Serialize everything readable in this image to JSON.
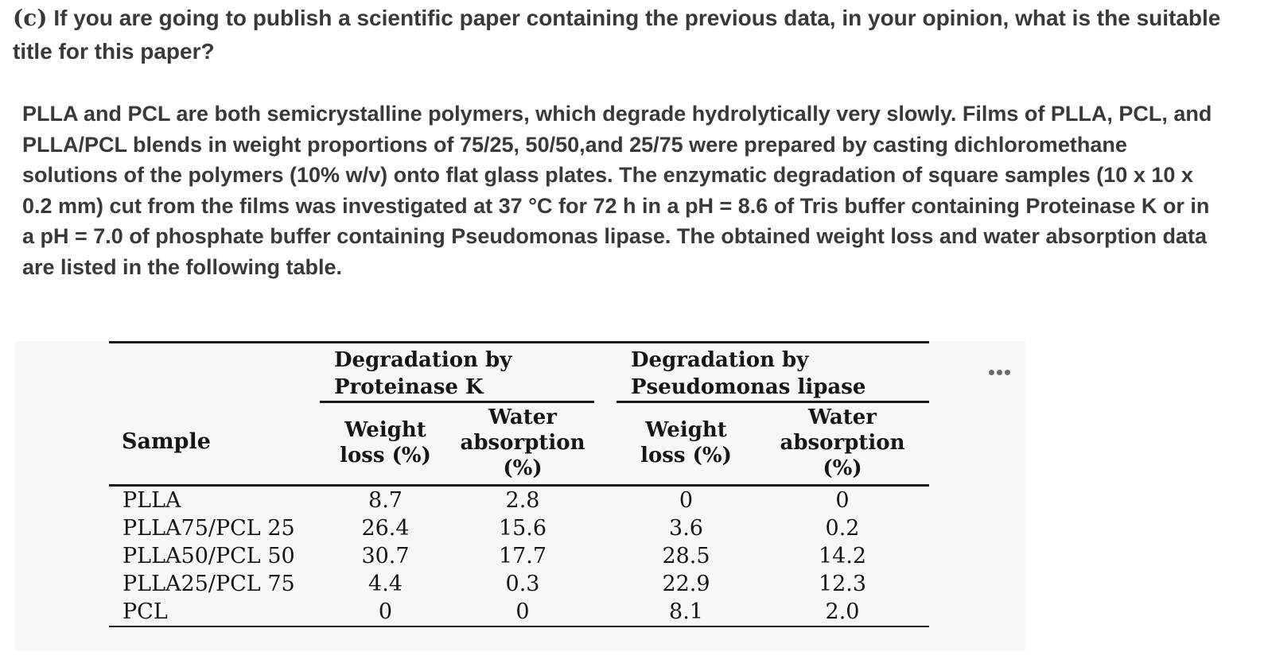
{
  "question": {
    "label": "(c)",
    "text": "If you are going to publish a scientific paper containing the previous data, in your opinion, what is the suitable title for this paper?"
  },
  "passage": {
    "text": "PLLA and PCL are both semicrystalline polymers, which degrade hydrolytically very slowly. Films of PLLA, PCL, and PLLA/PCL blends in weight proportions of 75/25, 50/50,and 25/75 were prepared by casting dichloromethane solutions of the polymers (10% w/v) onto flat glass plates. The enzymatic degradation of square samples (10 x 10 x 0.2 mm) cut from the films was investigated at 37 °C for 72 h in a pH = 8.6 of Tris buffer containing Proteinase K or in a pH = 7.0 of phosphate buffer containing Pseudomonas lipase. The obtained weight loss and water absorption data are listed in the following table."
  },
  "table": {
    "sample_header": "Sample",
    "groups": [
      {
        "title": "Degradation by Proteinase K"
      },
      {
        "title": "Degradation by Pseudomonas lipase"
      }
    ],
    "sub_headers": [
      "Weight loss (%)",
      "Water absorption (%)",
      "Weight loss (%)",
      "Water absorption (%)"
    ],
    "rows": [
      {
        "sample": "PLLA",
        "values": [
          "8.7",
          "2.8",
          "0",
          "0"
        ]
      },
      {
        "sample": "PLLA75/PCL 25",
        "values": [
          "26.4",
          "15.6",
          "3.6",
          "0.2"
        ]
      },
      {
        "sample": "PLLA50/PCL 50",
        "values": [
          "30.7",
          "17.7",
          "28.5",
          "14.2"
        ]
      },
      {
        "sample": "PLLA25/PCL 75",
        "values": [
          "4.4",
          "0.3",
          "22.9",
          "12.3"
        ]
      },
      {
        "sample": "PCL",
        "values": [
          "0",
          "0",
          "8.1",
          "2.0"
        ]
      }
    ]
  },
  "icons": {
    "more_options": "ellipsis-horizontal",
    "more_options_label": "more options"
  },
  "colors": {
    "panel_bg": "#f7f7f7",
    "body_text": "#363a3d",
    "table_text": "#161616",
    "rule": "#1a1a1a",
    "dots": "#6b6b6b"
  }
}
